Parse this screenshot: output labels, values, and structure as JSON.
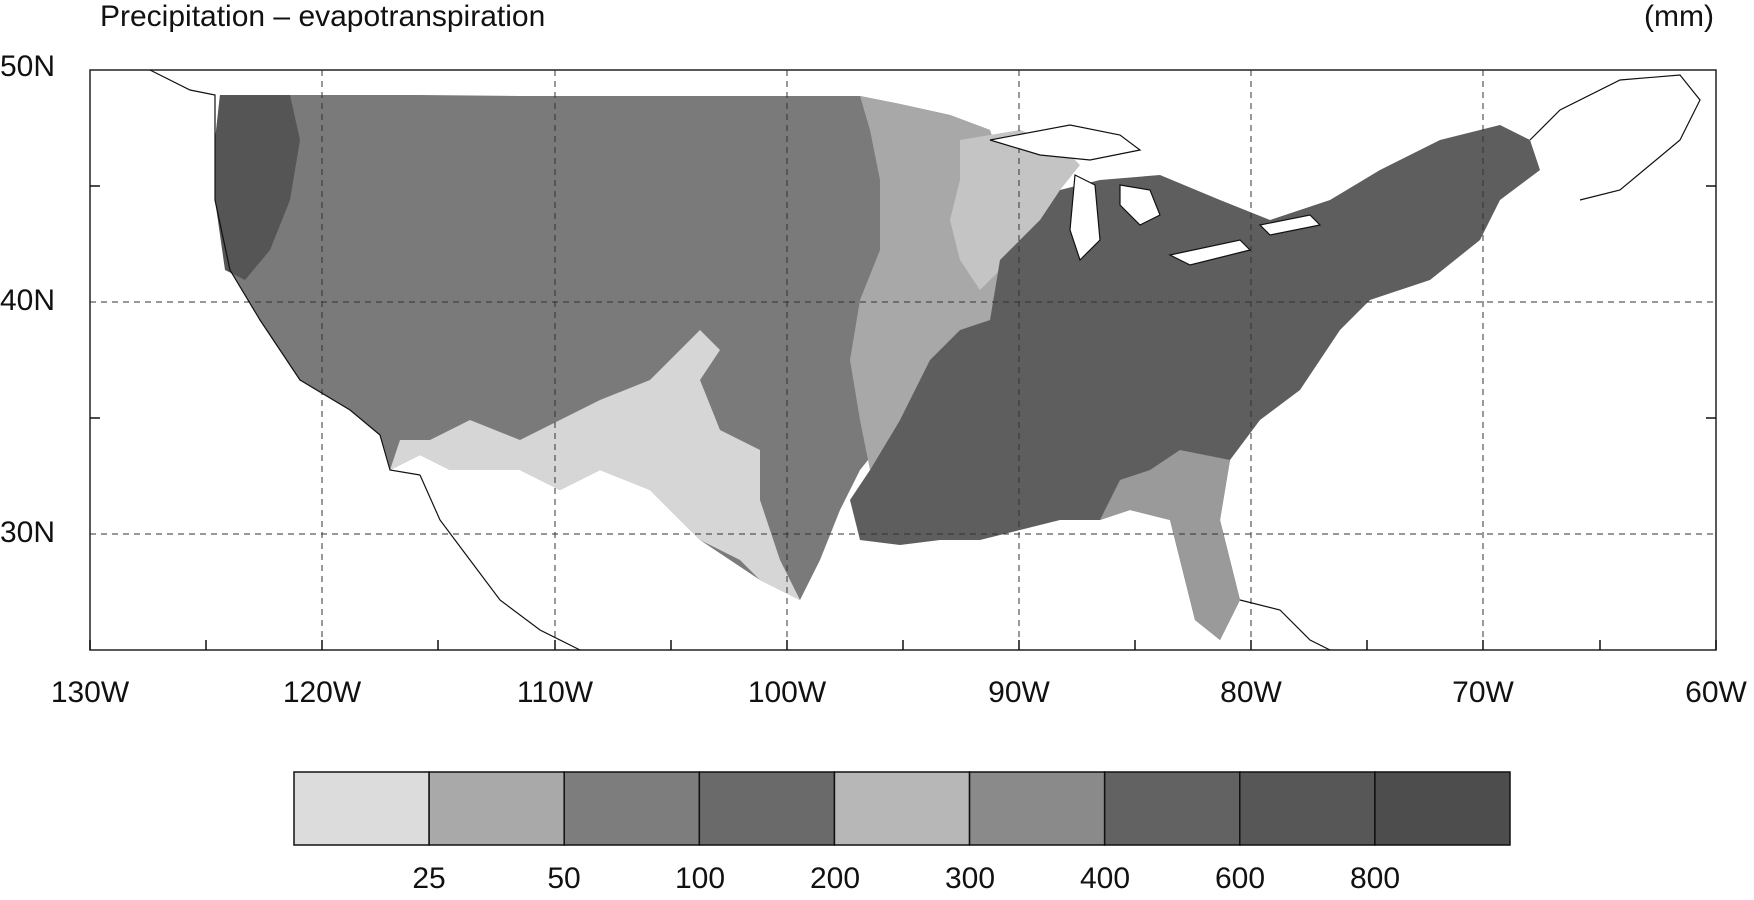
{
  "map": {
    "title": "Precipitation – evapotranspiration",
    "units": "(mm)",
    "lat_labels": [
      "50N",
      "40N",
      "30N"
    ],
    "lon_labels": [
      "130W",
      "120W",
      "110W",
      "100W",
      "90W",
      "80W",
      "70W",
      "60W"
    ],
    "region": "Contiguous United States",
    "lon_range": [
      -130,
      -60
    ],
    "lat_range": [
      25,
      50
    ],
    "gridlines": "dashed"
  },
  "colorbar": {
    "labels": [
      "25",
      "50",
      "100",
      "200",
      "300",
      "400",
      "600",
      "800"
    ],
    "colors": [
      "#dcdcdc",
      "#a9a9a9",
      "#7d7d7d",
      "#6a6a6a",
      "#b7b7b7",
      "#8a8a8a",
      "#626262",
      "#575757",
      "#4d4d4d"
    ]
  }
}
